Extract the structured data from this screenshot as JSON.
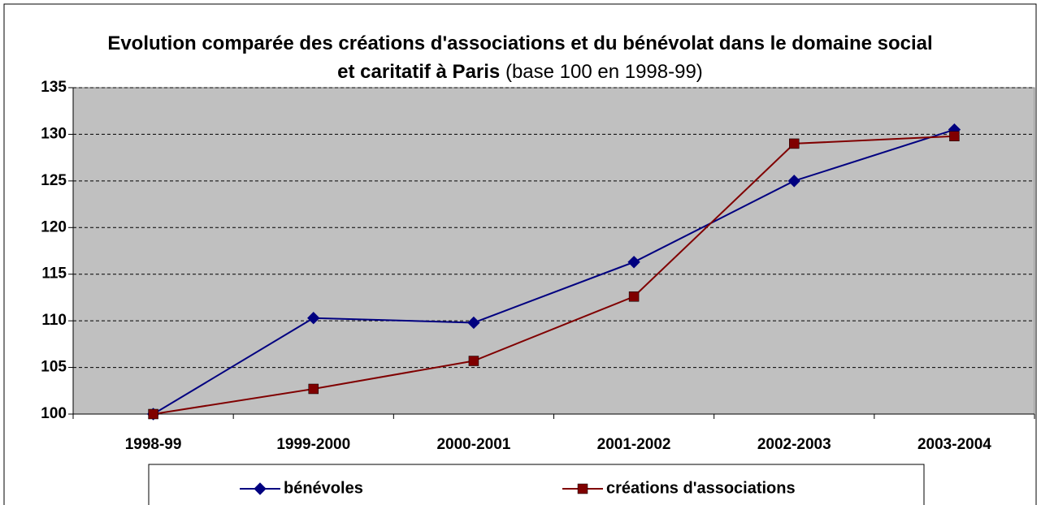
{
  "chart_data": {
    "type": "line",
    "title": "Evolution comparée des créations d'associations et du bénévolat dans le domaine social et caritatif à Paris",
    "subtitle": "(base 100 en 1998-99)",
    "categories": [
      "1998-99",
      "1999-2000",
      "2000-2001",
      "2001-2002",
      "2002-2003",
      "2003-2004"
    ],
    "series": [
      {
        "name": "bénévoles",
        "color": "#000080",
        "marker": "diamond",
        "values": [
          100,
          110.3,
          109.8,
          116.3,
          125,
          130.5
        ]
      },
      {
        "name": "créations d'associations",
        "color": "#800000",
        "marker": "square",
        "values": [
          100,
          102.7,
          105.7,
          112.6,
          129,
          129.8
        ]
      }
    ],
    "ylim": [
      100,
      135
    ],
    "yticks": [
      100,
      105,
      110,
      115,
      120,
      125,
      130,
      135
    ],
    "grid": true,
    "legend": "bottom"
  }
}
